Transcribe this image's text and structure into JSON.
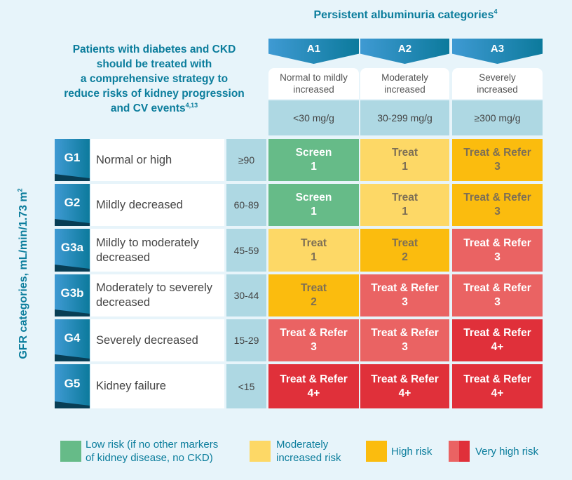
{
  "albuminuria_title": "Persistent albuminuria categories",
  "albuminuria_title_sup": "4",
  "intro_lines": [
    "Patients with diabetes and CKD",
    "should be treated with",
    "a comprehensive strategy to",
    "reduce risks of kidney progression",
    "and CV events"
  ],
  "intro_sup": "4,13",
  "gfr_axis_label": "GFR categories, mL/min/1.73 m",
  "gfr_axis_sup": "2",
  "columns": [
    {
      "code": "A1",
      "desc_lines": [
        "Normal to mildly",
        "increased"
      ],
      "range": "<30 mg/g"
    },
    {
      "code": "A2",
      "desc_lines": [
        "Moderately",
        "increased"
      ],
      "range": "30-299 mg/g"
    },
    {
      "code": "A3",
      "desc_lines": [
        "Severely",
        "increased"
      ],
      "range": "≥300 mg/g"
    }
  ],
  "rows": [
    {
      "code": "G1",
      "desc": "Normal or high",
      "range": "≥90",
      "cells": [
        [
          "Screen",
          "1",
          "low"
        ],
        [
          "Treat",
          "1",
          "moderate"
        ],
        [
          "Treat & Refer",
          "3",
          "high"
        ]
      ]
    },
    {
      "code": "G2",
      "desc": "Mildly decreased",
      "range": "60-89",
      "cells": [
        [
          "Screen",
          "1",
          "low"
        ],
        [
          "Treat",
          "1",
          "moderate"
        ],
        [
          "Treat & Refer",
          "3",
          "high"
        ]
      ]
    },
    {
      "code": "G3a",
      "desc": "Mildly to moderately decreased",
      "range": "45-59",
      "cells": [
        [
          "Treat",
          "1",
          "moderate"
        ],
        [
          "Treat",
          "2",
          "high"
        ],
        [
          "Treat & Refer",
          "3",
          "very_high_light"
        ]
      ]
    },
    {
      "code": "G3b",
      "desc": "Moderately to severely decreased",
      "range": "30-44",
      "cells": [
        [
          "Treat",
          "2",
          "high"
        ],
        [
          "Treat & Refer",
          "3",
          "very_high_light"
        ],
        [
          "Treat & Refer",
          "3",
          "very_high_light"
        ]
      ]
    },
    {
      "code": "G4",
      "desc": "Severely decreased",
      "range": "15-29",
      "cells": [
        [
          "Treat & Refer",
          "3",
          "very_high_light"
        ],
        [
          "Treat & Refer",
          "3",
          "very_high_light"
        ],
        [
          "Treat & Refer",
          "4+",
          "very_high_dark"
        ]
      ]
    },
    {
      "code": "G5",
      "desc": "Kidney failure",
      "range": "<15",
      "cells": [
        [
          "Treat & Refer",
          "4+",
          "very_high_dark"
        ],
        [
          "Treat & Refer",
          "4+",
          "very_high_dark"
        ],
        [
          "Treat & Refer",
          "4+",
          "very_high_dark"
        ]
      ]
    }
  ],
  "colors": {
    "low": "#66bb88",
    "moderate": "#fdd866",
    "high": "#fbbc0e",
    "very_high_light": "#ea6363",
    "very_high_dark": "#e0303a",
    "accent": "#0b7d9c"
  },
  "legend": [
    {
      "label": "Low risk (if no other markers of kidney disease, no CKD)",
      "lines": [
        "Low risk (if no other markers",
        "of kidney disease, no CKD)"
      ],
      "risk": "low"
    },
    {
      "label": "Moderately increased risk",
      "lines": [
        "Moderately",
        "increased risk"
      ],
      "risk": "moderate"
    },
    {
      "label": "High risk",
      "lines": [
        "High risk"
      ],
      "risk": "high"
    },
    {
      "label": "Very high risk",
      "lines": [
        "Very high risk"
      ],
      "risk": "very_high"
    }
  ]
}
